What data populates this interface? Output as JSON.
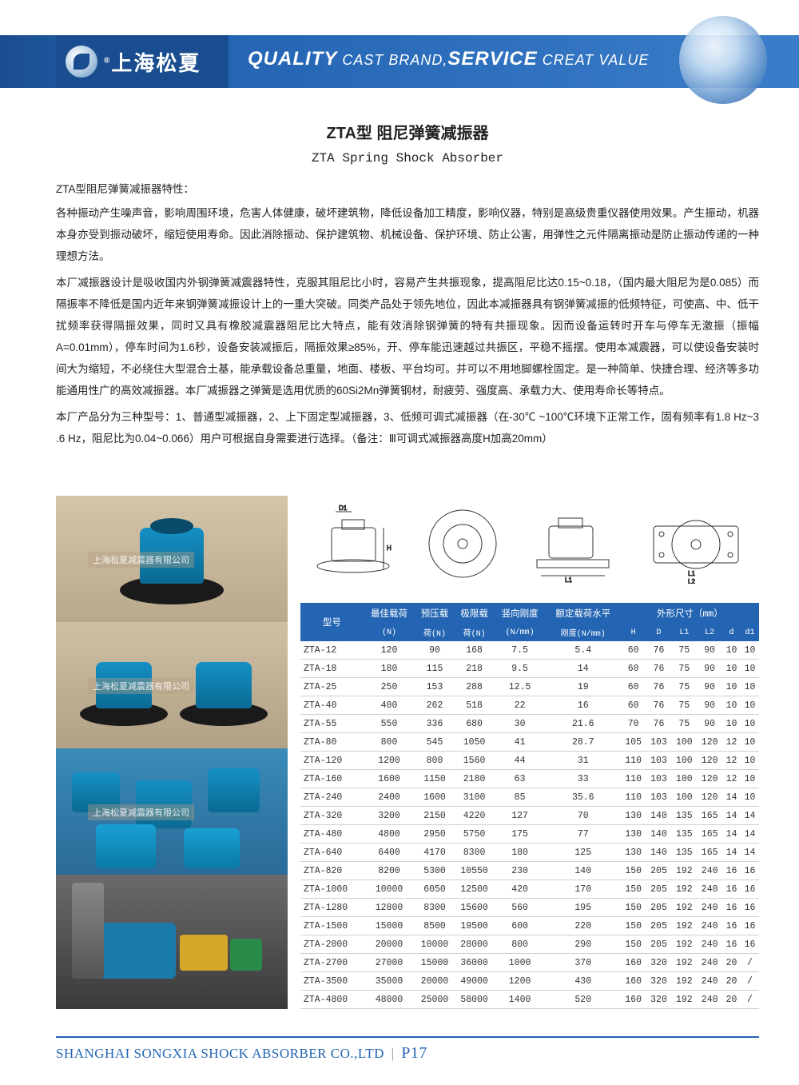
{
  "header": {
    "logo_text": "上海松夏",
    "reg": "®",
    "tagline_q": "QUALITY",
    "tagline_cb": " CAST BRAND,",
    "tagline_s": "SERVICE",
    "tagline_cv": " CREAT VALUE"
  },
  "title_cn": "ZTA型 阻尼弹簧减振器",
  "title_en": "ZTA Spring Shock Absorber",
  "features_label": "ZTA型阻尼弹簧减振器特性：",
  "paragraphs": [
    "各种振动产生噪声音，影响周围环境，危害人体健康，破坏建筑物，降低设备加工精度，影响仪器，特别是高级贵重仪器使用效果。产生振动，机器本身亦受到振动破坏，缩短使用寿命。因此消除振动、保护建筑物、机械设备、保护环境、防止公害，用弹性之元件隔离振动是防止振动传递的一种理想方法。",
    "本厂减振器设计是吸收国内外钢弹簧减震器特性，克服其阻尼比小时，容易产生共振现象，提高阻尼比达0.15~0.18，（国内最大阻尼为是0.085）而隔振率不降低是国内近年来钢弹簧减振设计上的一重大突破。同类产品处于领先地位，因此本减振器具有钢弹簧减振的低频特征，可使高、中、低干扰频率获得隔振效果，同时又具有橡胶减震器阻尼比大特点，能有效消除钢弹簧的特有共振现象。因而设备运转时开车与停车无激振（振幅A=0.01mm），停车时间为1.6秒，设备安装减振后，隔振效果≥85%，开、停车能迅速越过共振区，平稳不摇摆。使用本减震器，可以使设备安装时间大为缩短，不必绕住大型混合土基，能承载设备总重量，地面、楼板、平台均可。并可以不用地脚螺栓固定。是一种简单、快捷合理、经济等多功能通用性广的高效减振器。本厂减振器之弹簧是选用优质的60Si2Mn弹簧钢材，耐疲劳、强度高、承载力大、使用寿命长等特点。",
    "本厂产品分为三种型号：1、普通型减振器，2、上下固定型减振器，3、低频可调式减振器（在-30℃ ~100℃环境下正常工作，固有频率有1.8 Hz~3 .6 Hz，阻尼比为0.04~0.066）用户可根据自身需要进行选择。（备注：Ⅲ可调式减振器高度H加高20mm）"
  ],
  "watermark": "上海松夏减震器有限公司",
  "table": {
    "headers_row1": [
      "型号",
      "最佳载荷",
      "预压载",
      "极限载",
      "竖向刚度",
      "额定载荷水平",
      "外形尺寸（mm）"
    ],
    "headers_row2": [
      "",
      "(N)",
      "荷(N)",
      "荷(N)",
      "(N/mm)",
      "刚度(N/mm)",
      "H",
      "D",
      "L1",
      "L2",
      "d",
      "d1"
    ],
    "rows": [
      [
        "ZTA-12",
        "120",
        "90",
        "168",
        "7.5",
        "5.4",
        "60",
        "76",
        "75",
        "90",
        "10",
        "10"
      ],
      [
        "ZTA-18",
        "180",
        "115",
        "218",
        "9.5",
        "14",
        "60",
        "76",
        "75",
        "90",
        "10",
        "10"
      ],
      [
        "ZTA-25",
        "250",
        "153",
        "288",
        "12.5",
        "19",
        "60",
        "76",
        "75",
        "90",
        "10",
        "10"
      ],
      [
        "ZTA-40",
        "400",
        "262",
        "518",
        "22",
        "16",
        "60",
        "76",
        "75",
        "90",
        "10",
        "10"
      ],
      [
        "ZTA-55",
        "550",
        "336",
        "680",
        "30",
        "21.6",
        "70",
        "76",
        "75",
        "90",
        "10",
        "10"
      ],
      [
        "ZTA-80",
        "800",
        "545",
        "1050",
        "41",
        "28.7",
        "105",
        "103",
        "100",
        "120",
        "12",
        "10"
      ],
      [
        "ZTA-120",
        "1200",
        "800",
        "1560",
        "44",
        "31",
        "110",
        "103",
        "100",
        "120",
        "12",
        "10"
      ],
      [
        "ZTA-160",
        "1600",
        "1150",
        "2180",
        "63",
        "33",
        "110",
        "103",
        "100",
        "120",
        "12",
        "10"
      ],
      [
        "ZTA-240",
        "2400",
        "1600",
        "3100",
        "85",
        "35.6",
        "110",
        "103",
        "100",
        "120",
        "14",
        "10"
      ],
      [
        "ZTA-320",
        "3200",
        "2150",
        "4220",
        "127",
        "70",
        "130",
        "140",
        "135",
        "165",
        "14",
        "14"
      ],
      [
        "ZTA-480",
        "4800",
        "2950",
        "5750",
        "175",
        "77",
        "130",
        "140",
        "135",
        "165",
        "14",
        "14"
      ],
      [
        "ZTA-640",
        "6400",
        "4170",
        "8300",
        "180",
        "125",
        "130",
        "140",
        "135",
        "165",
        "14",
        "14"
      ],
      [
        "ZTA-820",
        "8200",
        "5300",
        "10550",
        "230",
        "140",
        "150",
        "205",
        "192",
        "240",
        "16",
        "16"
      ],
      [
        "ZTA-1000",
        "10000",
        "6050",
        "12500",
        "420",
        "170",
        "150",
        "205",
        "192",
        "240",
        "16",
        "16"
      ],
      [
        "ZTA-1280",
        "12800",
        "8300",
        "15600",
        "560",
        "195",
        "150",
        "205",
        "192",
        "240",
        "16",
        "16"
      ],
      [
        "ZTA-1500",
        "15000",
        "8500",
        "19500",
        "600",
        "220",
        "150",
        "205",
        "192",
        "240",
        "16",
        "16"
      ],
      [
        "ZTA-2000",
        "20000",
        "10000",
        "28000",
        "800",
        "290",
        "150",
        "205",
        "192",
        "240",
        "16",
        "16"
      ],
      [
        "ZTA-2700",
        "27000",
        "15000",
        "36000",
        "1000",
        "370",
        "160",
        "320",
        "192",
        "240",
        "20",
        "/"
      ],
      [
        "ZTA-3500",
        "35000",
        "20000",
        "49000",
        "1200",
        "430",
        "160",
        "320",
        "192",
        "240",
        "20",
        "/"
      ],
      [
        "ZTA-4800",
        "48000",
        "25000",
        "58000",
        "1400",
        "520",
        "160",
        "320",
        "192",
        "240",
        "20",
        "/"
      ]
    ]
  },
  "footer": {
    "company": "SHANGHAI SONGXIA SHOCK ABSORBER CO.,LTD",
    "page": "P17"
  },
  "colors": {
    "brand_blue": "#2465b3",
    "header_dark": "#1a4d8f",
    "text": "#222222"
  }
}
